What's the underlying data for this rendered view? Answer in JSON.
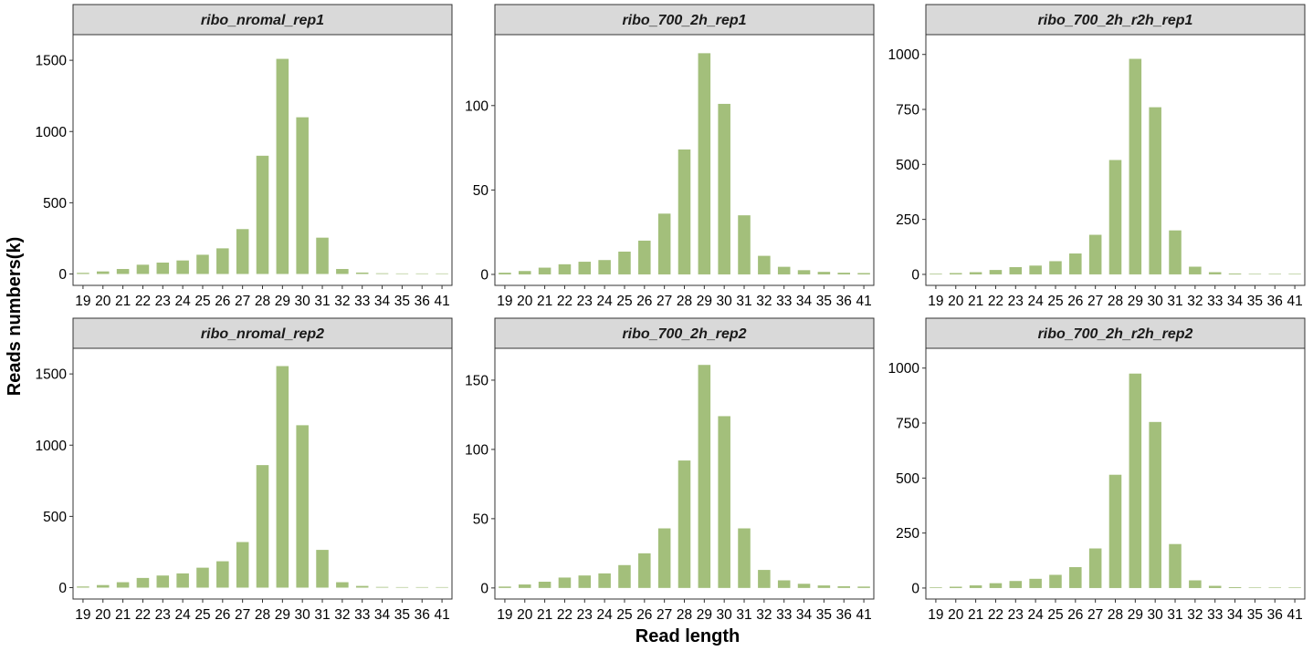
{
  "figure": {
    "xlabel": "Read length",
    "ylabel": "Reads numbers(k)",
    "bar_color": "#a3bf7b",
    "strip_color": "#d9d9d9"
  },
  "chart_data": [
    {
      "type": "bar",
      "title": "ribo_nromal_rep1",
      "categories": [
        "19",
        "20",
        "21",
        "22",
        "23",
        "24",
        "25",
        "26",
        "27",
        "28",
        "29",
        "30",
        "31",
        "32",
        "33",
        "34",
        "35",
        "36",
        "41"
      ],
      "values": [
        8,
        18,
        35,
        65,
        80,
        95,
        135,
        180,
        315,
        830,
        1510,
        1100,
        255,
        35,
        10,
        5,
        3,
        2,
        1
      ],
      "yticks": [
        0,
        500,
        1000,
        1500
      ],
      "ylim": [
        -80,
        1680
      ],
      "xlabel": "Read length",
      "ylabel": "Reads numbers(k)"
    },
    {
      "type": "bar",
      "title": "ribo_700_2h_rep1",
      "categories": [
        "19",
        "20",
        "21",
        "22",
        "23",
        "24",
        "25",
        "26",
        "27",
        "28",
        "29",
        "30",
        "31",
        "32",
        "33",
        "34",
        "35",
        "36",
        "41"
      ],
      "values": [
        1,
        2,
        4,
        6,
        7.5,
        8.5,
        13.5,
        20,
        36,
        74,
        131,
        101,
        35,
        11,
        4.5,
        2.5,
        1.5,
        1,
        0.8
      ],
      "yticks": [
        0,
        50,
        100
      ],
      "ylim": [
        -6.5,
        142
      ],
      "xlabel": "Read length",
      "ylabel": "Reads numbers(k)"
    },
    {
      "type": "bar",
      "title": "ribo_700_2h_r2h_rep1",
      "categories": [
        "19",
        "20",
        "21",
        "22",
        "23",
        "24",
        "25",
        "26",
        "27",
        "28",
        "29",
        "30",
        "31",
        "32",
        "33",
        "34",
        "35",
        "36",
        "41"
      ],
      "values": [
        3,
        6,
        10,
        20,
        33,
        40,
        60,
        95,
        180,
        520,
        980,
        760,
        200,
        35,
        10,
        4,
        2,
        1.5,
        1
      ],
      "yticks": [
        0,
        250,
        500,
        750,
        1000
      ],
      "ylim": [
        -50,
        1090
      ],
      "xlabel": "Read length",
      "ylabel": "Reads numbers(k)"
    },
    {
      "type": "bar",
      "title": "ribo_nromal_rep2",
      "categories": [
        "19",
        "20",
        "21",
        "22",
        "23",
        "24",
        "25",
        "26",
        "27",
        "28",
        "29",
        "30",
        "31",
        "32",
        "33",
        "34",
        "35",
        "36",
        "41"
      ],
      "values": [
        8,
        18,
        38,
        68,
        85,
        100,
        140,
        185,
        320,
        860,
        1555,
        1140,
        265,
        38,
        12,
        5,
        3,
        2,
        1
      ],
      "yticks": [
        0,
        500,
        1000,
        1500
      ],
      "ylim": [
        -80,
        1680
      ],
      "xlabel": "Read length",
      "ylabel": "Reads numbers(k)"
    },
    {
      "type": "bar",
      "title": "ribo_700_2h_rep2",
      "categories": [
        "19",
        "20",
        "21",
        "22",
        "23",
        "24",
        "25",
        "26",
        "27",
        "28",
        "29",
        "30",
        "31",
        "32",
        "33",
        "34",
        "35",
        "36",
        "41"
      ],
      "values": [
        1,
        2.5,
        4.5,
        7.5,
        9,
        10.5,
        16.5,
        25,
        43,
        92,
        161,
        124,
        43,
        13,
        5.5,
        3,
        1.8,
        1.2,
        1
      ],
      "yticks": [
        0,
        50,
        100,
        150
      ],
      "ylim": [
        -8,
        173
      ],
      "xlabel": "Read length",
      "ylabel": "Reads numbers(k)"
    },
    {
      "type": "bar",
      "title": "ribo_700_2h_r2h_rep2",
      "categories": [
        "19",
        "20",
        "21",
        "22",
        "23",
        "24",
        "25",
        "26",
        "27",
        "28",
        "29",
        "30",
        "31",
        "32",
        "33",
        "34",
        "35",
        "36",
        "41"
      ],
      "values": [
        3,
        6,
        12,
        22,
        32,
        42,
        60,
        95,
        180,
        515,
        975,
        755,
        200,
        35,
        10,
        4,
        2,
        1.5,
        1
      ],
      "yticks": [
        0,
        250,
        500,
        750,
        1000
      ],
      "ylim": [
        -50,
        1090
      ],
      "xlabel": "Read length",
      "ylabel": "Reads numbers(k)"
    }
  ]
}
